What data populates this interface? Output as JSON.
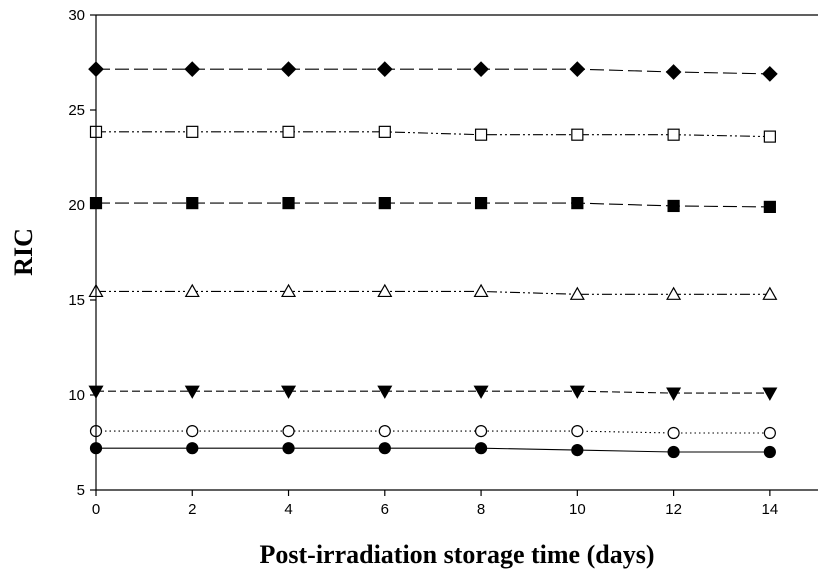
{
  "chart_data": {
    "type": "line",
    "title": "",
    "xlabel": "Post-irradiation storage time (days)",
    "ylabel": "RIC",
    "xlim": [
      0,
      15
    ],
    "ylim": [
      5,
      30
    ],
    "x_ticks": [
      0,
      2,
      4,
      6,
      8,
      10,
      12,
      14
    ],
    "y_ticks": [
      5,
      10,
      15,
      20,
      25,
      30
    ],
    "grid": false,
    "legend": "none",
    "x": [
      0,
      2,
      4,
      6,
      8,
      10,
      12,
      14
    ],
    "series": [
      {
        "marker": "filled-diamond",
        "line_style": "long-dash",
        "values": [
          27.15,
          27.15,
          27.15,
          27.15,
          27.15,
          27.15,
          27.0,
          26.9
        ]
      },
      {
        "marker": "open-square",
        "line_style": "dash-dot-dot",
        "values": [
          23.85,
          23.85,
          23.85,
          23.85,
          23.7,
          23.7,
          23.7,
          23.6
        ]
      },
      {
        "marker": "filled-square",
        "line_style": "long-dash",
        "values": [
          20.1,
          20.1,
          20.1,
          20.1,
          20.1,
          20.1,
          19.95,
          19.9
        ]
      },
      {
        "marker": "open-triangle-up",
        "line_style": "dash-dot-dot",
        "values": [
          15.45,
          15.45,
          15.45,
          15.45,
          15.45,
          15.3,
          15.3,
          15.3
        ]
      },
      {
        "marker": "filled-triangle-down",
        "line_style": "short-dash",
        "values": [
          10.2,
          10.2,
          10.2,
          10.2,
          10.2,
          10.2,
          10.1,
          10.1
        ]
      },
      {
        "marker": "open-circle",
        "line_style": "dotted",
        "values": [
          8.1,
          8.1,
          8.1,
          8.1,
          8.1,
          8.1,
          8.0,
          8.0
        ]
      },
      {
        "marker": "filled-circle",
        "line_style": "solid",
        "values": [
          7.2,
          7.2,
          7.2,
          7.2,
          7.2,
          7.1,
          7.0,
          7.0
        ]
      }
    ]
  }
}
